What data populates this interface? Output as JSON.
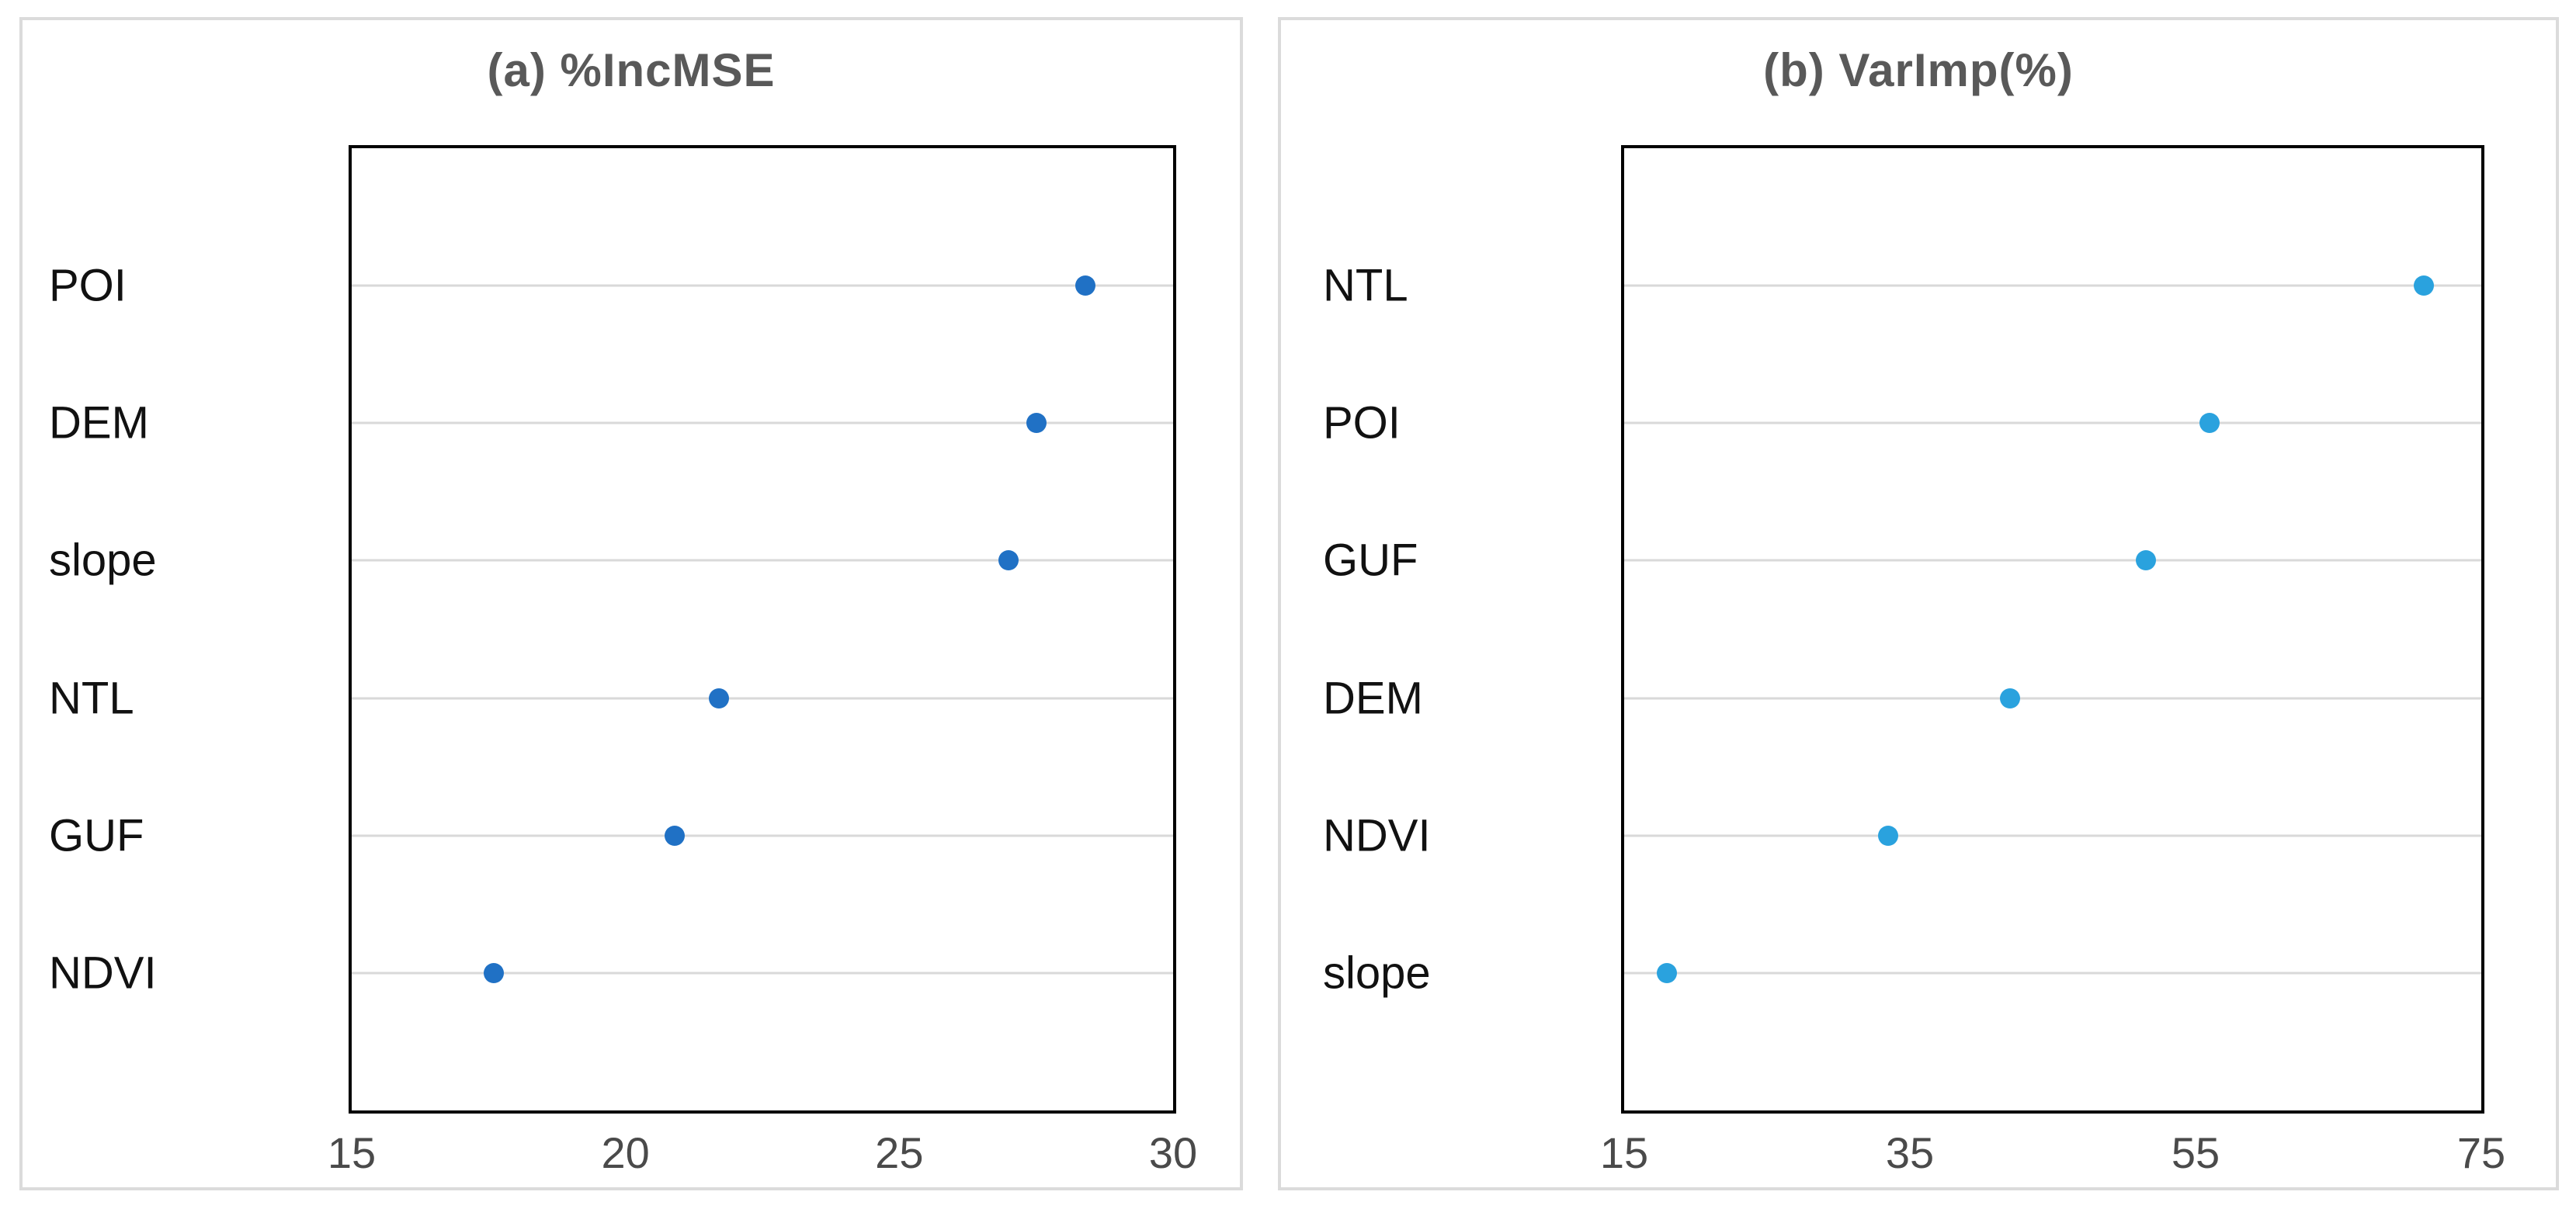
{
  "figure": {
    "background": "#FFFFFF",
    "panel_count": 2
  },
  "styles": {
    "title_color": "#595959",
    "category_label_color": "#111111",
    "tick_label_color": "#4A4A4A",
    "gridline_color": "#D9D9D9",
    "plot_border_color": "#000000",
    "panel_border_color": "#DBDBDB"
  },
  "chart_data": [
    {
      "type": "scatter",
      "subtype": "horizontal-dot-plot",
      "title": "(a) %IncMSE",
      "categories": [
        "POI",
        "DEM",
        "slope",
        "NTL",
        "GUF",
        "NDVI"
      ],
      "values": [
        28.4,
        27.5,
        27.0,
        21.7,
        20.9,
        17.6
      ],
      "xlim": [
        15,
        30
      ],
      "x_ticks": [
        "15",
        "20",
        "25",
        "30"
      ],
      "x_tick_values": [
        15,
        20,
        25,
        30
      ],
      "xlabel": "",
      "ylabel": "",
      "grid": "horizontal-on",
      "legend": "none",
      "dot_color": "#2071C5",
      "category_order": "top-to-bottom"
    },
    {
      "type": "scatter",
      "subtype": "horizontal-dot-plot",
      "title": "(b) VarImp(%)",
      "categories": [
        "NTL",
        "POI",
        "GUF",
        "DEM",
        "NDVI",
        "slope"
      ],
      "values": [
        71,
        56,
        51.5,
        42,
        33.5,
        18
      ],
      "xlim": [
        15,
        75
      ],
      "x_ticks": [
        "15",
        "35",
        "55",
        "75"
      ],
      "x_tick_values": [
        15,
        35,
        55,
        75
      ],
      "xlabel": "",
      "ylabel": "",
      "grid": "horizontal-on",
      "legend": "none",
      "dot_color": "#2AA2DE",
      "category_order": "top-to-bottom"
    }
  ]
}
